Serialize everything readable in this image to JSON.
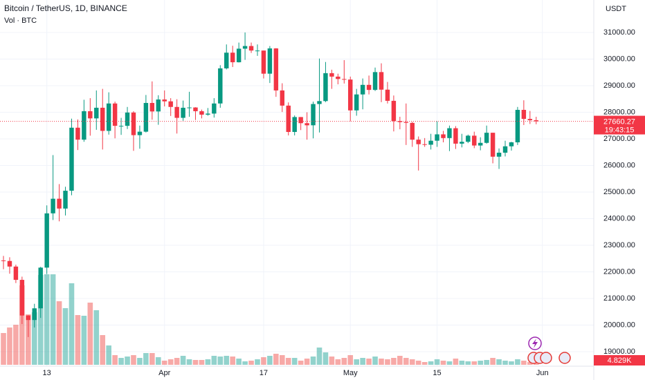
{
  "chart_data": [
    {
      "type": "candlestick",
      "title": "Bitcoin / TetherUS, 1D, BINANCE",
      "y_axis_label": "USDT",
      "countdown": "19:43:15",
      "up_color": "#089981",
      "down_color": "#f23645",
      "grid": true,
      "x": [
        0,
        1,
        2,
        3,
        4,
        5,
        6,
        7,
        8,
        9,
        10,
        11,
        12,
        13,
        14,
        15,
        16,
        17,
        18,
        19,
        20,
        21,
        22,
        23,
        24,
        25,
        26,
        27,
        28,
        29,
        30,
        31,
        32,
        33,
        34,
        35,
        36,
        37,
        38,
        39,
        40,
        41,
        42,
        43,
        44,
        45,
        46,
        47,
        48,
        49,
        50,
        51,
        52,
        53,
        54,
        55,
        56,
        57,
        58,
        59,
        60,
        61,
        62,
        63,
        64,
        65,
        66,
        67,
        68,
        69,
        70,
        71,
        72,
        73,
        74,
        75,
        76,
        77,
        78,
        79,
        80,
        81,
        82,
        83,
        84,
        85,
        86
      ],
      "open": [
        22430,
        22410,
        22200,
        21700,
        20360,
        20190,
        20630,
        22160,
        24200,
        24750,
        24380,
        25050,
        27420,
        26970,
        28040,
        27770,
        28170,
        27300,
        28330,
        27490,
        27490,
        27990,
        27140,
        27270,
        28350,
        28030,
        28480,
        28410,
        28200,
        27790,
        28170,
        28180,
        28040,
        27910,
        27950,
        28330,
        29650,
        30240,
        29880,
        30390,
        30490,
        30320,
        30320,
        29450,
        30400,
        28820,
        28250,
        27260,
        27820,
        27590,
        27510,
        28310,
        28420,
        29470,
        29340,
        29250,
        29230,
        28070,
        28670,
        29030,
        28840,
        29510,
        28850,
        28430,
        27670,
        27630,
        27600,
        26970,
        26800,
        26780,
        26930,
        27170,
        27030,
        27400,
        26820,
        26890,
        27120,
        26750,
        26850,
        27230,
        26330,
        26480,
        26720,
        26870,
        28090,
        27750,
        27700
      ],
      "high": [
        22600,
        22550,
        22270,
        21820,
        20370,
        20800,
        22190,
        24500,
        26390,
        25300,
        25200,
        27760,
        27730,
        28470,
        28530,
        28820,
        28880,
        28750,
        28400,
        27790,
        28200,
        28040,
        27500,
        28650,
        29160,
        28640,
        28820,
        28530,
        28490,
        28440,
        28770,
        28190,
        28100,
        28160,
        28530,
        29770,
        30550,
        30500,
        30620,
        31000,
        30620,
        30550,
        30320,
        30490,
        30410,
        29090,
        28370,
        27880,
        27820,
        28000,
        28400,
        30020,
        29890,
        29600,
        29450,
        29960,
        29340,
        28880,
        29270,
        29380,
        29680,
        29840,
        29140,
        28630,
        27830,
        28330,
        27640,
        27090,
        27030,
        27190,
        27660,
        27300,
        27500,
        27480,
        27190,
        27160,
        27270,
        27060,
        27500,
        27230,
        26640,
        26930,
        26890,
        28200,
        28450,
        28050,
        27830
      ],
      "low": [
        22100,
        21930,
        21580,
        20040,
        19550,
        19910,
        20270,
        21920,
        23950,
        23900,
        24120,
        24880,
        26580,
        26890,
        27120,
        27340,
        26600,
        27160,
        27020,
        27150,
        27370,
        26550,
        26630,
        27240,
        27720,
        27530,
        28220,
        27860,
        27200,
        27680,
        27830,
        27710,
        27770,
        27870,
        27800,
        28170,
        29610,
        29700,
        29870,
        29970,
        30230,
        30120,
        29270,
        29100,
        28580,
        28010,
        27130,
        27130,
        27330,
        26970,
        27020,
        27240,
        28380,
        28880,
        29050,
        29080,
        27660,
        27870,
        28110,
        28670,
        28800,
        28380,
        28330,
        27280,
        27360,
        26770,
        26700,
        25810,
        26700,
        26600,
        26700,
        26870,
        26540,
        26620,
        26680,
        26840,
        26650,
        26570,
        26820,
        26080,
        25870,
        26340,
        26560,
        26770,
        27520,
        27560,
        27550
      ],
      "close": [
        22410,
        22200,
        21700,
        20360,
        20190,
        20630,
        22160,
        24200,
        24750,
        24380,
        25050,
        27420,
        26970,
        28040,
        27770,
        28170,
        27300,
        28330,
        27490,
        27490,
        27990,
        27140,
        27270,
        28350,
        28030,
        28480,
        28410,
        28200,
        27790,
        28170,
        28180,
        28040,
        27910,
        27950,
        28330,
        29650,
        30240,
        29880,
        30390,
        30490,
        30320,
        30320,
        29450,
        30400,
        28820,
        28250,
        27260,
        27820,
        27590,
        27510,
        28310,
        28420,
        29470,
        29340,
        29250,
        29230,
        28070,
        28670,
        29030,
        28840,
        29510,
        28850,
        28430,
        27670,
        27630,
        27600,
        26970,
        26800,
        26780,
        26930,
        27170,
        27030,
        27400,
        26820,
        26890,
        27120,
        26750,
        26850,
        27230,
        26330,
        26480,
        26720,
        26870,
        28090,
        27750,
        27700,
        27660.27
      ],
      "xlim": [
        -0.56,
        95.3
      ],
      "xticks": [
        {
          "value": 7,
          "label": "13"
        },
        {
          "value": 26,
          "label": "Apr"
        },
        {
          "value": 42,
          "label": "17"
        },
        {
          "value": 56,
          "label": "May"
        },
        {
          "value": 70,
          "label": "15"
        },
        {
          "value": 87,
          "label": "Jun"
        }
      ],
      "ylim": [
        18455,
        32220
      ],
      "yticks": [
        {
          "value": 19000,
          "label": "19000.00"
        },
        {
          "value": 20000,
          "label": "20000.00"
        },
        {
          "value": 21000,
          "label": "21000.00"
        },
        {
          "value": 22000,
          "label": "22000.00"
        },
        {
          "value": 23000,
          "label": "23000.00"
        },
        {
          "value": 24000,
          "label": "24000.00"
        },
        {
          "value": 25000,
          "label": "25000.00"
        },
        {
          "value": 26000,
          "label": "26000.00"
        },
        {
          "value": 27000,
          "label": "27000.00"
        },
        {
          "value": 28000,
          "label": "28000.00"
        },
        {
          "value": 29000,
          "label": "29000.00"
        },
        {
          "value": 30000,
          "label": "30000.00"
        },
        {
          "value": 31000,
          "label": "31000.00"
        }
      ]
    },
    {
      "type": "bar",
      "title": "Vol · BTC",
      "up_color": "rgba(38,166,154,0.5)",
      "down_color": "rgba(239,83,80,0.5)",
      "ylim": [
        0,
        240000
      ],
      "values": [
        73600,
        86400,
        92800,
        184000,
        116800,
        121600,
        208000,
        209600,
        209600,
        147200,
        131200,
        188800,
        115200,
        113600,
        144000,
        126400,
        68800,
        44800,
        22400,
        16000,
        19200,
        22400,
        16000,
        27200,
        27200,
        17600,
        9600,
        12800,
        16000,
        20800,
        12800,
        11200,
        11200,
        12800,
        20800,
        19200,
        20800,
        19200,
        14400,
        8000,
        9600,
        12800,
        17600,
        20800,
        25600,
        22400,
        16000,
        16000,
        9600,
        14400,
        19200,
        40000,
        28800,
        19200,
        12800,
        16000,
        22400,
        12800,
        16000,
        14400,
        19200,
        14400,
        12800,
        16000,
        20800,
        16000,
        12800,
        9600,
        6400,
        8000,
        12800,
        9600,
        8000,
        14400,
        9600,
        8000,
        8000,
        9600,
        11200,
        16000,
        12800,
        9600,
        8000,
        12800,
        9600,
        6400,
        4829
      ],
      "value_labels": [
        null,
        null,
        null,
        null,
        null,
        null,
        null,
        null,
        null,
        null,
        null,
        null,
        null,
        null,
        null,
        null,
        null,
        null,
        null,
        null,
        null,
        null,
        null,
        null,
        null,
        null,
        null,
        null,
        null,
        null,
        null,
        null,
        null,
        null,
        null,
        null,
        null,
        null,
        null,
        null,
        null,
        null,
        null,
        null,
        null,
        null,
        null,
        null,
        null,
        null,
        null,
        null,
        null,
        null,
        null,
        null,
        null,
        null,
        null,
        null,
        null,
        null,
        null,
        null,
        null,
        null,
        null,
        null,
        null,
        null,
        null,
        null,
        null,
        null,
        null,
        null,
        null,
        null,
        null,
        null,
        null,
        null,
        null,
        null,
        null,
        null,
        "4.829K"
      ]
    }
  ]
}
